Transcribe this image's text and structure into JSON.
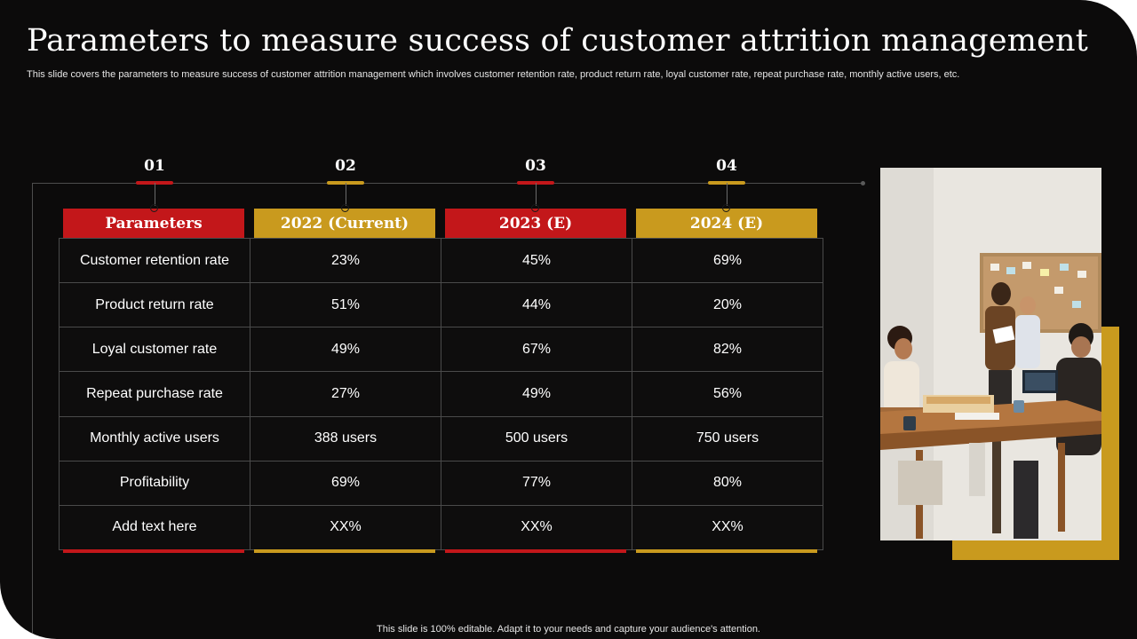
{
  "title": "Parameters to measure success of customer attrition management",
  "subtitle": "This slide covers the parameters to measure success of customer attrition management which involves customer retention rate, product return rate, loyal customer rate, repeat purchase rate, monthly active users, etc.",
  "timeline": [
    "01",
    "02",
    "03",
    "04"
  ],
  "headers": [
    "Parameters",
    "2022 (Current)",
    "2023 (E)",
    "2024 (E)"
  ],
  "rows": [
    [
      "Customer retention rate",
      "23%",
      "45%",
      "69%"
    ],
    [
      "Product return  rate",
      "51%",
      "44%",
      "20%"
    ],
    [
      "Loyal customer  rate",
      "49%",
      "67%",
      "82%"
    ],
    [
      "Repeat purchase rate",
      "27%",
      "49%",
      "56%"
    ],
    [
      "Monthly  active users",
      "388 users",
      "500 users",
      "750 users"
    ],
    [
      "Profitability",
      "69%",
      "77%",
      "80%"
    ],
    [
      "Add text here",
      "XX%",
      "XX%",
      "XX%"
    ]
  ],
  "colors": {
    "red": "#c3171a",
    "gold": "#c99a1e",
    "background": "#0c0b0b"
  },
  "footer": "This slide is 100% editable. Adapt it to your needs and capture your audience's attention."
}
